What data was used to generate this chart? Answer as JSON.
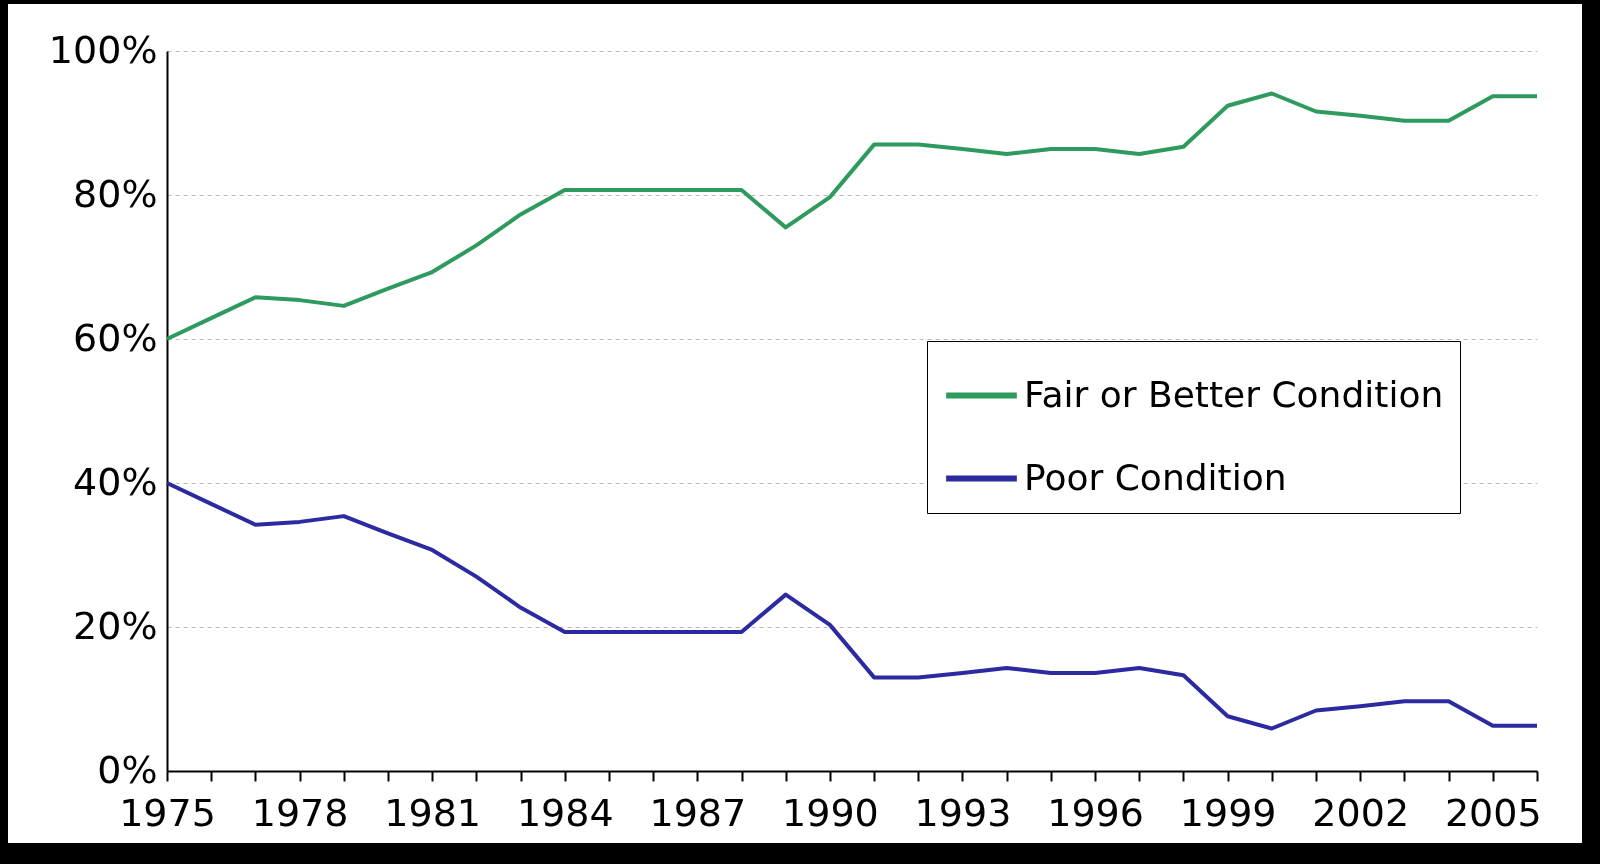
{
  "chart_data": {
    "type": "line",
    "x": [
      1975,
      1976,
      1977,
      1978,
      1979,
      1980,
      1981,
      1982,
      1983,
      1984,
      1985,
      1986,
      1987,
      1988,
      1989,
      1990,
      1991,
      1992,
      1993,
      1994,
      1995,
      1996,
      1997,
      1998,
      1999,
      2000,
      2001,
      2002,
      2003,
      2004,
      2005,
      2006
    ],
    "series": [
      {
        "name": "Fair or Better Condition",
        "color": "#2e9a5e",
        "values": [
          60,
          62.9,
          65.8,
          65.4,
          64.6,
          67,
          69.3,
          73,
          77.3,
          80.7,
          80.7,
          80.7,
          80.7,
          80.7,
          75.5,
          79.7,
          87,
          87,
          86.4,
          85.7,
          86.4,
          86.4,
          85.7,
          86.7,
          92.4,
          94.1,
          91.6,
          91,
          90.3,
          90.3,
          93.7,
          93.7
        ]
      },
      {
        "name": "Poor Condition",
        "color": "#2b2aa0",
        "values": [
          40,
          37.1,
          34.2,
          34.6,
          35.4,
          33,
          30.7,
          27,
          22.7,
          19.3,
          19.3,
          19.3,
          19.3,
          19.3,
          24.5,
          20.3,
          13,
          13,
          13.6,
          14.3,
          13.6,
          13.6,
          14.3,
          13.3,
          7.6,
          5.9,
          8.4,
          9,
          9.7,
          9.7,
          6.3,
          6.3
        ]
      }
    ],
    "xlim": [
      1975,
      2006
    ],
    "xticks": [
      1975,
      {
        "value": 1976,
        "label": null
      },
      {
        "value": 1977,
        "label": null
      },
      1978,
      {
        "value": 1979,
        "label": null
      },
      {
        "value": 1980,
        "label": null
      },
      1981,
      {
        "value": 1982,
        "label": null
      },
      {
        "value": 1983,
        "label": null
      },
      1984,
      {
        "value": 1985,
        "label": null
      },
      {
        "value": 1986,
        "label": null
      },
      1987,
      {
        "value": 1988,
        "label": null
      },
      {
        "value": 1989,
        "label": null
      },
      1990,
      {
        "value": 1991,
        "label": null
      },
      {
        "value": 1992,
        "label": null
      },
      1993,
      {
        "value": 1994,
        "label": null
      },
      {
        "value": 1995,
        "label": null
      },
      1996,
      {
        "value": 1997,
        "label": null
      },
      {
        "value": 1998,
        "label": null
      },
      1999,
      {
        "value": 2000,
        "label": null
      },
      {
        "value": 2001,
        "label": null
      },
      2002,
      {
        "value": 2003,
        "label": null
      },
      {
        "value": 2004,
        "label": null
      },
      2005,
      {
        "value": 2006,
        "label": null
      }
    ],
    "ylim": [
      0,
      100
    ],
    "yticks": [
      {
        "value": 0,
        "label": "0%"
      },
      {
        "value": 20,
        "label": "20%"
      },
      {
        "value": 40,
        "label": "40%"
      },
      {
        "value": 60,
        "label": "60%"
      },
      {
        "value": 80,
        "label": "80%"
      },
      {
        "value": 100,
        "label": "100%"
      }
    ],
    "grid": "y",
    "legend": "right",
    "line_style": "solid",
    "marker": "none"
  }
}
